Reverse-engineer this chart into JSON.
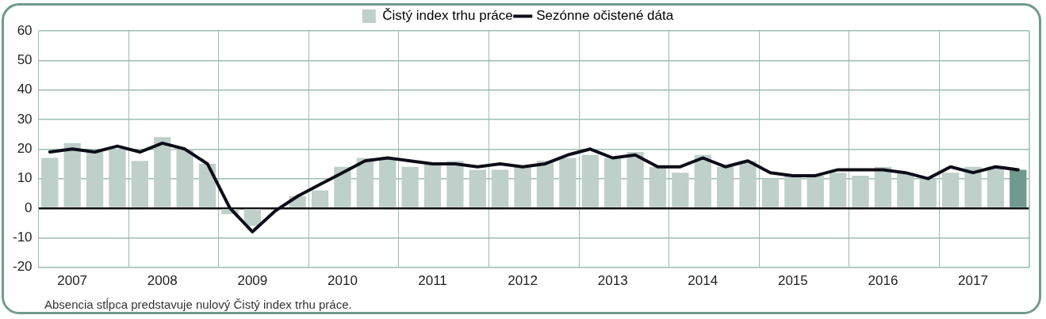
{
  "chart_data": {
    "type": "bar",
    "categories": [
      null,
      "2007",
      null,
      null,
      null,
      "2008",
      null,
      null,
      null,
      "2009",
      null,
      null,
      null,
      "2010",
      null,
      null,
      null,
      "2011",
      null,
      null,
      null,
      "2012",
      null,
      null,
      null,
      "2013",
      null,
      null,
      null,
      "2014",
      null,
      null,
      null,
      "2015",
      null,
      null,
      null,
      "2016",
      null,
      null,
      null,
      "2017",
      null,
      null
    ],
    "series": [
      {
        "name": "Čistý index trhu práce",
        "color": "#bfcfc9",
        "colors": [
          "#bfcfc9",
          "#bfcfc9",
          "#bfcfc9",
          "#bfcfc9",
          "#bfcfc9",
          "#bfcfc9",
          "#bfcfc9",
          "#bfcfc9",
          "#bfcfc9",
          "#bfcfc9",
          "#bfcfc9",
          "#bfcfc9",
          "#bfcfc9",
          "#bfcfc9",
          "#bfcfc9",
          "#bfcfc9",
          "#bfcfc9",
          "#bfcfc9",
          "#bfcfc9",
          "#bfcfc9",
          "#bfcfc9",
          "#bfcfc9",
          "#bfcfc9",
          "#bfcfc9",
          "#bfcfc9",
          "#bfcfc9",
          "#bfcfc9",
          "#bfcfc9",
          "#bfcfc9",
          "#bfcfc9",
          "#bfcfc9",
          "#bfcfc9",
          "#bfcfc9",
          "#bfcfc9",
          "#bfcfc9",
          "#bfcfc9",
          "#bfcfc9",
          "#bfcfc9",
          "#bfcfc9",
          "#bfcfc9",
          "#bfcfc9",
          "#bfcfc9",
          "#bfcfc9",
          "#6f9a8d"
        ],
        "values": [
          17,
          22,
          19,
          20,
          16,
          24,
          20,
          15,
          -2,
          -6,
          null,
          4,
          6,
          14,
          17,
          17,
          14,
          15,
          16,
          13,
          13,
          14,
          16,
          17,
          18,
          17,
          19,
          14,
          12,
          18,
          14,
          16,
          10,
          11,
          11,
          12,
          11,
          14,
          12,
          10,
          12,
          14,
          14,
          13
        ]
      },
      {
        "name": "Sezónne očistené dáta",
        "type": "line",
        "color": "#0d0d1a",
        "values": [
          19,
          20,
          19,
          21,
          19,
          22,
          20,
          15,
          0,
          -8,
          -1,
          4,
          8,
          12,
          16,
          17,
          16,
          15,
          15,
          14,
          15,
          14,
          15,
          18,
          20,
          17,
          18,
          14,
          14,
          17,
          14,
          16,
          12,
          11,
          11,
          13,
          13,
          13,
          12,
          10,
          14,
          12,
          14,
          13
        ]
      }
    ],
    "ylim": [
      -20,
      60
    ],
    "yticks": [
      -20,
      -10,
      0,
      10,
      20,
      30,
      40,
      50,
      60
    ],
    "grid": true,
    "legend": "top",
    "marker": "none",
    "line_style": "solid",
    "annotations": [
      "Absencia stĺpca predstavuje nulový Čistý index trhu práce."
    ]
  }
}
